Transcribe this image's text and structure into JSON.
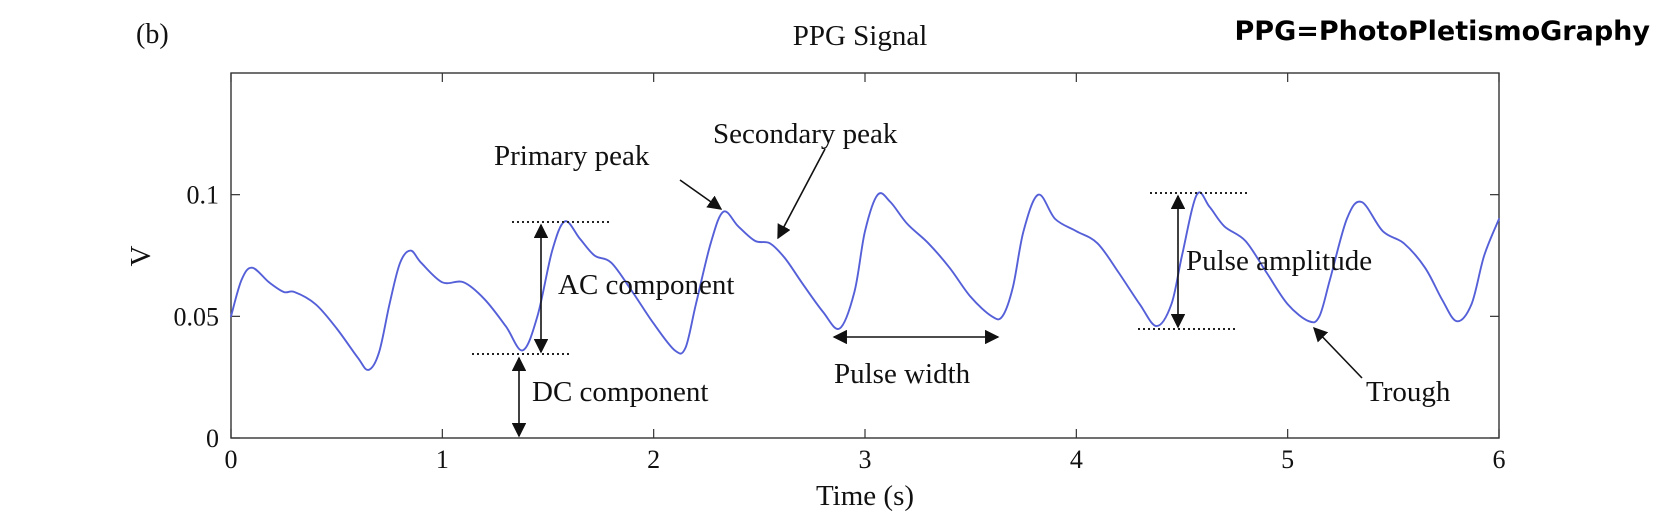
{
  "panel_label": "(b)",
  "header_note": "PPG=PhotoPletismoGraphy",
  "colors": {
    "signal": "#5560d8",
    "axis": "#333333",
    "text": "#111111"
  },
  "chart_data": {
    "type": "line",
    "title": "PPG Signal",
    "xlabel": "Time (s)",
    "ylabel": "V",
    "xlim": [
      0,
      6
    ],
    "ylim": [
      0,
      0.15
    ],
    "xticks": [
      0,
      1,
      2,
      3,
      4,
      5,
      6
    ],
    "yticks": [
      0,
      0.05,
      0.1
    ],
    "xtick_labels": [
      "0",
      "1",
      "2",
      "3",
      "4",
      "5",
      "6"
    ],
    "ytick_labels": [
      "0",
      "0.05",
      "0.1"
    ],
    "grid": false,
    "series": [
      {
        "x": [
          0,
          0.05,
          0.1,
          0.18,
          0.25,
          0.3,
          0.4,
          0.5,
          0.6,
          0.65,
          0.7,
          0.75,
          0.8,
          0.85,
          0.9,
          1.0,
          1.1,
          1.2,
          1.3,
          1.38,
          1.45,
          1.52,
          1.58,
          1.65,
          1.72,
          1.8,
          1.9,
          2.0,
          2.1,
          2.15,
          2.2,
          2.27,
          2.33,
          2.4,
          2.48,
          2.55,
          2.62,
          2.7,
          2.8,
          2.88,
          2.95,
          3.0,
          3.06,
          3.12,
          3.2,
          3.3,
          3.4,
          3.5,
          3.6,
          3.65,
          3.7,
          3.75,
          3.82,
          3.9,
          4.0,
          4.1,
          4.2,
          4.3,
          4.38,
          4.45,
          4.5,
          4.57,
          4.63,
          4.7,
          4.8,
          4.9,
          5.0,
          5.1,
          5.15,
          5.2,
          5.28,
          5.35,
          5.45,
          5.55,
          5.65,
          5.73,
          5.8,
          5.87,
          5.93,
          6.0
        ],
        "y": [
          0.05,
          0.065,
          0.07,
          0.064,
          0.06,
          0.06,
          0.055,
          0.045,
          0.033,
          0.028,
          0.035,
          0.055,
          0.072,
          0.077,
          0.072,
          0.064,
          0.064,
          0.057,
          0.046,
          0.036,
          0.05,
          0.077,
          0.089,
          0.082,
          0.075,
          0.072,
          0.06,
          0.047,
          0.036,
          0.037,
          0.055,
          0.08,
          0.093,
          0.087,
          0.081,
          0.08,
          0.074,
          0.064,
          0.052,
          0.045,
          0.06,
          0.085,
          0.1,
          0.097,
          0.088,
          0.08,
          0.07,
          0.058,
          0.05,
          0.05,
          0.062,
          0.085,
          0.1,
          0.09,
          0.085,
          0.08,
          0.068,
          0.055,
          0.046,
          0.055,
          0.075,
          0.1,
          0.095,
          0.087,
          0.081,
          0.068,
          0.055,
          0.048,
          0.05,
          0.065,
          0.09,
          0.097,
          0.085,
          0.08,
          0.07,
          0.057,
          0.048,
          0.055,
          0.075,
          0.09
        ]
      }
    ],
    "annotations": {
      "primary_peak": "Primary peak",
      "secondary_peak": "Secondary peak",
      "ac_component": "AC component",
      "dc_component": "DC component",
      "pulse_width": "Pulse width",
      "pulse_amplitude": "Pulse amplitude",
      "trough": "Trough"
    }
  }
}
